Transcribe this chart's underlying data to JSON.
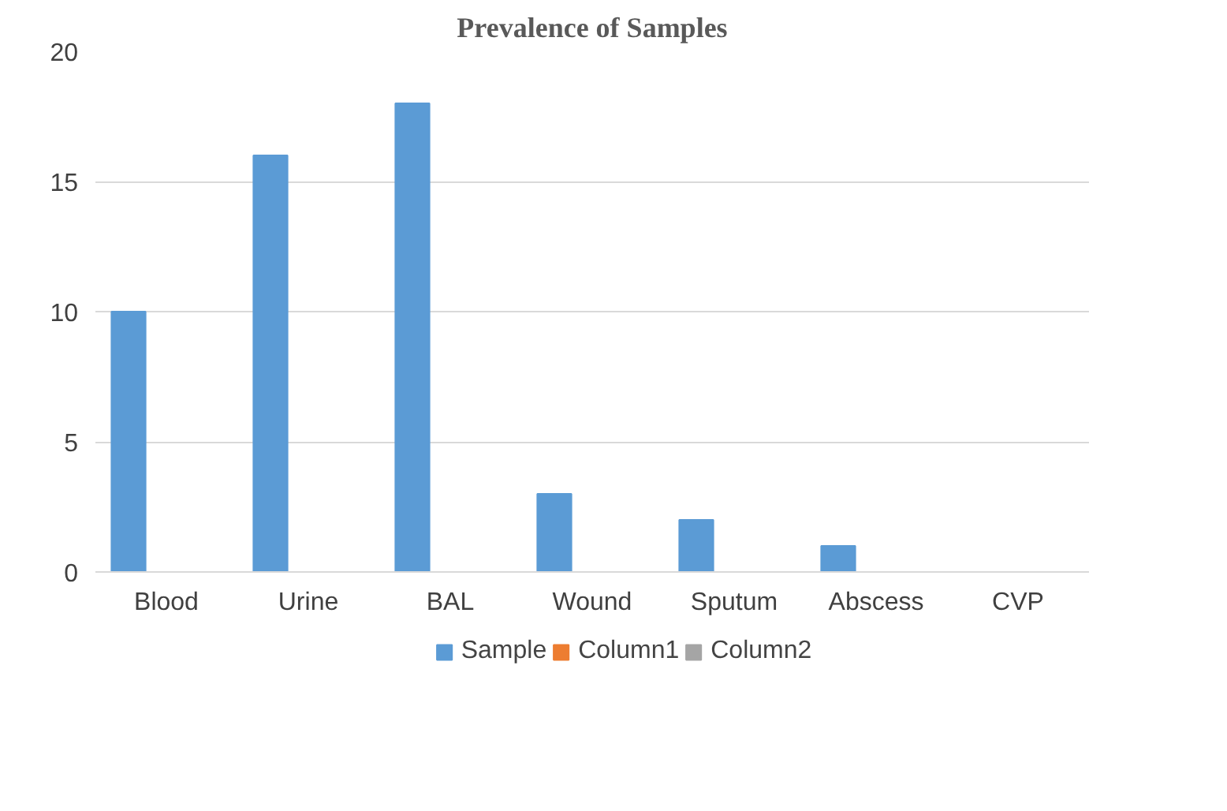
{
  "chart_data": {
    "type": "bar",
    "title": "Prevalence of Samples",
    "categories": [
      "Blood",
      "Urine",
      "BAL",
      "Wound",
      "Sputum",
      "Abscess",
      "CVP"
    ],
    "series": [
      {
        "name": "Sample",
        "color": "#5b9bd5",
        "values": [
          10,
          16,
          18,
          3,
          2,
          1,
          0
        ]
      },
      {
        "name": "Column1",
        "color": "#ed7d31",
        "values": [
          0,
          0,
          0,
          0,
          0,
          0,
          0
        ]
      },
      {
        "name": "Column2",
        "color": "#a5a5a5",
        "values": [
          0,
          0,
          0,
          0,
          0,
          0,
          0
        ]
      }
    ],
    "ylim": [
      0,
      20
    ],
    "yticks": [
      0,
      5,
      10,
      15,
      20
    ],
    "grid": "y",
    "legend": "bottom"
  }
}
